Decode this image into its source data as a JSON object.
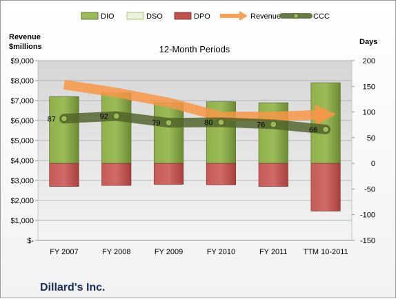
{
  "chart_data": {
    "type": "bar",
    "title": "12-Month Periods",
    "company": "Dillard's Inc.",
    "left_axis_label_line1": "Revenue",
    "left_axis_label_line2": "$millions",
    "right_axis_label": "Days",
    "categories": [
      "FY 2007",
      "FY 2008",
      "FY 2009",
      "FY 2010",
      "FY 2011",
      "TTM 10-2011"
    ],
    "left_ylim": [
      0,
      9000
    ],
    "left_ticks": [
      "$-",
      "$1,000",
      "$2,000",
      "$3,000",
      "$4,000",
      "$5,000",
      "$6,000",
      "$7,000",
      "$8,000",
      "$9,000"
    ],
    "right_ylim": [
      -150,
      200
    ],
    "right_ticks": [
      "-150",
      "-100",
      "-50",
      "0",
      "50",
      "100",
      "150",
      "200"
    ],
    "legend_position": "top",
    "series": [
      {
        "name": "DIO",
        "kind": "bar",
        "axis": "right",
        "color": "#77933c",
        "values": [
          130,
          137,
          118,
          120,
          118,
          157
        ]
      },
      {
        "name": "DSO",
        "kind": "bar",
        "axis": "right",
        "color": "#eaf1dd",
        "values": [
          0,
          0,
          0,
          0,
          0,
          0
        ]
      },
      {
        "name": "DPO",
        "kind": "bar",
        "axis": "right",
        "color": "#c0504d",
        "values": [
          -45,
          -43,
          -41,
          -42,
          -45,
          -93
        ]
      },
      {
        "name": "Revenue",
        "kind": "line",
        "axis": "left",
        "color": "#f79646",
        "values": [
          7800,
          7400,
          6900,
          6200,
          6200,
          6300
        ]
      },
      {
        "name": "CCC",
        "kind": "line",
        "axis": "right",
        "color": "#4f6228",
        "values": [
          87,
          92,
          79,
          80,
          76,
          66
        ],
        "labels": [
          "87",
          "92",
          "79",
          "80",
          "76",
          "66"
        ]
      }
    ]
  }
}
